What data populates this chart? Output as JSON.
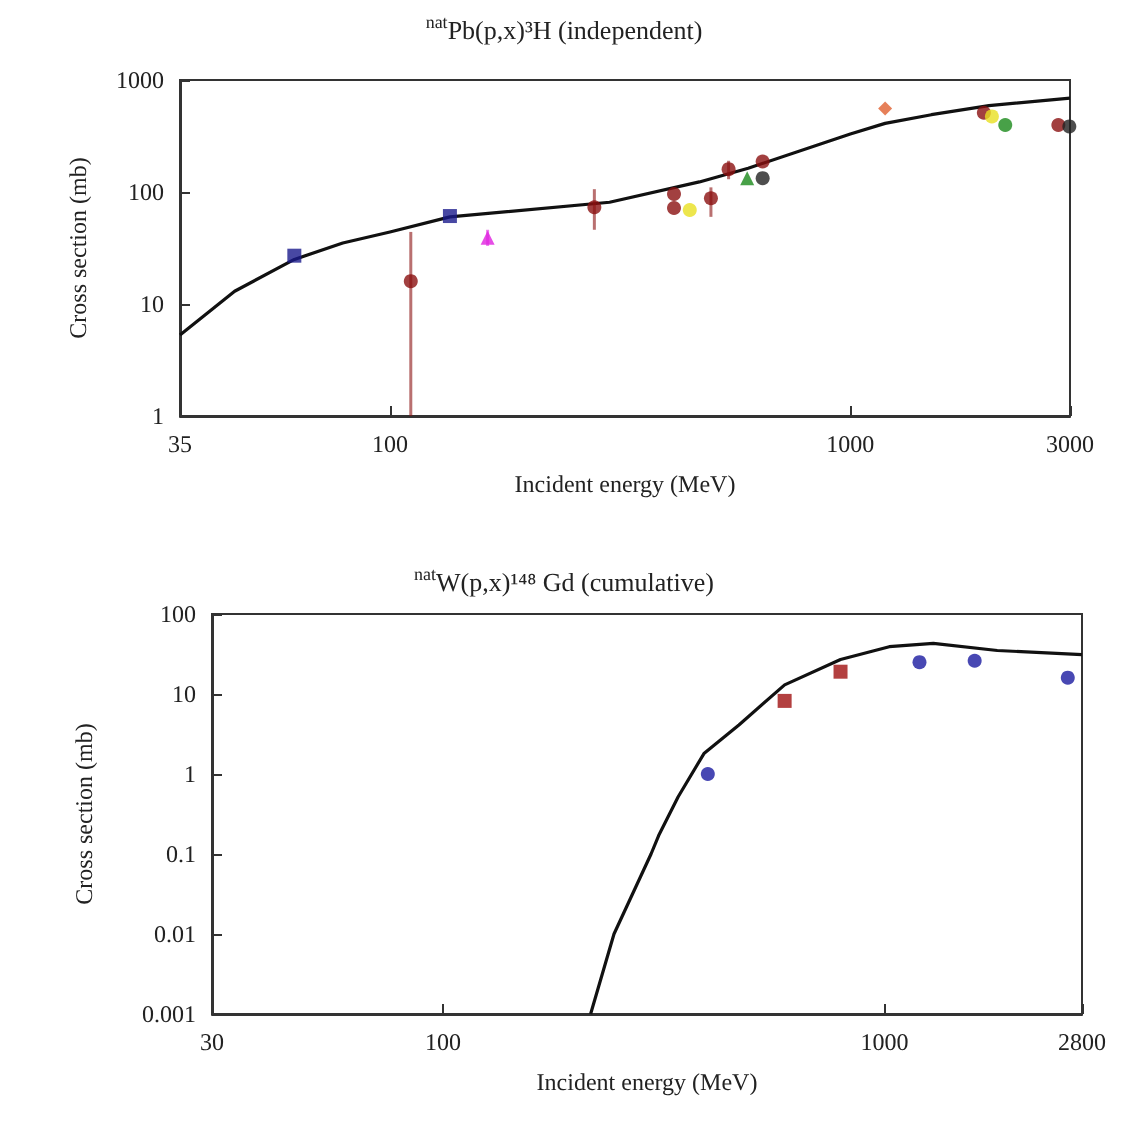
{
  "chart_data": [
    {
      "type": "scatter",
      "title": "$^{nat}$Pb(p,x)³H  (independent)",
      "xlabel": "Incident energy (MeV)",
      "ylabel": "Cross section (mb)",
      "log": "xy",
      "xlim": [
        35,
        3000
      ],
      "ylim": [
        1,
        1000
      ],
      "xticks": [
        35,
        100,
        1000,
        3000
      ],
      "yticks": [
        1,
        10,
        100,
        1000
      ],
      "grid": false,
      "series": [
        {
          "type": "line",
          "color": "#111111",
          "marker": "none",
          "x": [
            35,
            46,
            62,
            79,
            100,
            135,
            300,
            470,
            600,
            1000,
            1190,
            1500,
            2000,
            3000
          ],
          "values": [
            5.3,
            13,
            25,
            35,
            44,
            60,
            81,
            123,
            163,
            330,
            410,
            490,
            590,
            690
          ]
        },
        {
          "color": "#1a1a8c",
          "marker": "square",
          "x": [
            62,
            135
          ],
          "values": [
            27,
            61
          ]
        },
        {
          "color": "#8b1010",
          "marker": "circle",
          "x": [
            111,
            278,
            414,
            414,
            498,
            544,
            645,
            1950,
            2830
          ],
          "values": [
            16,
            73,
            96,
            72,
            88,
            160,
            187,
            510,
            396
          ],
          "errors": [
            [
              1,
              44
            ],
            [
              46,
              106
            ],
            null,
            null,
            [
              60,
              110
            ],
            [
              130,
              190
            ],
            null,
            null,
            null
          ]
        },
        {
          "color": "#e020e0",
          "marker": "triangle",
          "x": [
            163
          ],
          "values": [
            39
          ],
          "errors": [
            [
              33,
              46
            ]
          ]
        },
        {
          "color": "#e8e020",
          "marker": "circle",
          "x": [
            448,
            2030
          ],
          "values": [
            69,
            473
          ]
        },
        {
          "color": "#1a8a1a",
          "marker": "triangle",
          "x": [
            597
          ],
          "values": [
            133
          ]
        },
        {
          "color": "#1a8a1a",
          "marker": "circle",
          "x": [
            2170
          ],
          "values": [
            396
          ]
        },
        {
          "color": "#222222",
          "marker": "circle",
          "x": [
            645,
            2990
          ],
          "values": [
            133,
            385
          ]
        },
        {
          "color": "#e06030",
          "marker": "diamond",
          "x": [
            1190
          ],
          "values": [
            556
          ]
        }
      ]
    },
    {
      "type": "scatter",
      "title": "$^{nat}$W(p,x)¹⁴⁸ Gd (cumulative)",
      "xlabel": "Incident energy (MeV)",
      "ylabel": "Cross section (mb)",
      "log": "xy",
      "xlim": [
        30,
        2800
      ],
      "ylim": [
        0.001,
        100
      ],
      "xticks": [
        30,
        100,
        1000,
        2800
      ],
      "yticks": [
        0.001,
        0.01,
        0.1,
        1,
        10,
        100
      ],
      "grid": false,
      "series": [
        {
          "type": "line",
          "color": "#111111",
          "marker": "none",
          "x": [
            216,
            244,
            296,
            308,
            341,
            390,
            468,
            594,
            795,
            1025,
            1290,
            1800,
            2800
          ],
          "values": [
            0.001,
            0.01,
            0.1,
            0.17,
            0.52,
            1.8,
            4.1,
            13,
            27,
            39,
            43,
            35,
            31
          ]
        },
        {
          "color": "#a01010",
          "marker": "square",
          "x": [
            594,
            795
          ],
          "values": [
            8.2,
            19
          ]
        },
        {
          "color": "#1a1aa0",
          "marker": "circle",
          "x": [
            398,
            1200,
            1600,
            2600
          ],
          "values": [
            1,
            25,
            26,
            16
          ]
        }
      ]
    }
  ]
}
